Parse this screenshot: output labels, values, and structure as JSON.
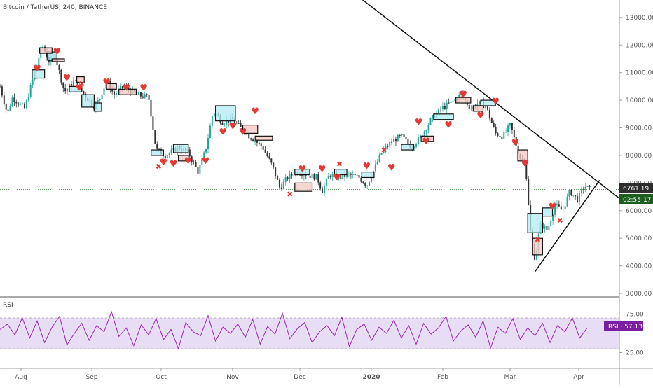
{
  "header": {
    "symbol_title": "Bitcoin / TetherUS, 240, BINANCE"
  },
  "rsi_panel": {
    "label": "RSI",
    "current_badge": "RSI · 57.13"
  },
  "price_badges": {
    "last_price": "6761.19",
    "countdown": "02:55:17"
  },
  "colors": {
    "candle_up": "#26a69a",
    "candle_down": "#333333",
    "box_up_fill": "#b2ebf2",
    "box_down_fill": "#f4c7c3",
    "heart": "#e53935",
    "cross": "#e53935",
    "rsi_line": "#9c27b0",
    "rsi_band": "#e1d5f2",
    "last_price_badge": "#2e2e2e",
    "countdown_badge": "#1b5e20",
    "rsi_badge": "#7b1fa2"
  },
  "chart_data": [
    {
      "type": "candlestick",
      "title": "Bitcoin / TetherUS, 240, BINANCE",
      "xlabel": "",
      "ylabel": "",
      "x_tick_labels": [
        "Aug",
        "Sep",
        "Oct",
        "Nov",
        "Dec",
        "2020",
        "Feb",
        "Mar",
        "Apr"
      ],
      "y_tick_labels": [
        "3000.00",
        "4000.00",
        "5000.00",
        "6000.00",
        "7000.00",
        "8000.00",
        "9000.00",
        "10000.00",
        "11000.00",
        "12000.00",
        "13000.00"
      ],
      "ylim": [
        2900,
        13300
      ],
      "grid": false,
      "close_path": [
        {
          "t": 0,
          "v": 10500
        },
        {
          "t": 0.3,
          "v": 9500
        },
        {
          "t": 0.5,
          "v": 10100
        },
        {
          "t": 1,
          "v": 9700
        },
        {
          "t": 1.4,
          "v": 11000
        },
        {
          "t": 1.7,
          "v": 12000
        },
        {
          "t": 2.0,
          "v": 11400
        },
        {
          "t": 2.2,
          "v": 11700
        },
        {
          "t": 2.6,
          "v": 10300
        },
        {
          "t": 3.0,
          "v": 10700
        },
        {
          "t": 3.4,
          "v": 10200
        },
        {
          "t": 3.8,
          "v": 9800
        },
        {
          "t": 4.0,
          "v": 10000
        },
        {
          "t": 4.3,
          "v": 10700
        },
        {
          "t": 4.6,
          "v": 10200
        },
        {
          "t": 5.0,
          "v": 10500
        },
        {
          "t": 5.5,
          "v": 10200
        },
        {
          "t": 6.0,
          "v": 10100
        },
        {
          "t": 6.3,
          "v": 8200
        },
        {
          "t": 6.7,
          "v": 8000
        },
        {
          "t": 7.2,
          "v": 8300
        },
        {
          "t": 7.6,
          "v": 8100
        },
        {
          "t": 8.0,
          "v": 7400
        },
        {
          "t": 8.3,
          "v": 8200
        },
        {
          "t": 8.6,
          "v": 9600
        },
        {
          "t": 9.0,
          "v": 9200
        },
        {
          "t": 9.4,
          "v": 9300
        },
        {
          "t": 9.8,
          "v": 8900
        },
        {
          "t": 10.2,
          "v": 8600
        },
        {
          "t": 10.6,
          "v": 8300
        },
        {
          "t": 11.0,
          "v": 7600
        },
        {
          "t": 11.3,
          "v": 6800
        },
        {
          "t": 11.6,
          "v": 7200
        },
        {
          "t": 12.0,
          "v": 7400
        },
        {
          "t": 12.4,
          "v": 7300
        },
        {
          "t": 12.8,
          "v": 7200
        },
        {
          "t": 13.0,
          "v": 6700
        },
        {
          "t": 13.3,
          "v": 7300
        },
        {
          "t": 13.7,
          "v": 7200
        },
        {
          "t": 14.1,
          "v": 7300
        },
        {
          "t": 14.5,
          "v": 7200
        },
        {
          "t": 14.8,
          "v": 6900
        },
        {
          "t": 15.1,
          "v": 7500
        },
        {
          "t": 15.4,
          "v": 8100
        },
        {
          "t": 15.8,
          "v": 8500
        },
        {
          "t": 16.2,
          "v": 8700
        },
        {
          "t": 16.6,
          "v": 8300
        },
        {
          "t": 17.0,
          "v": 8700
        },
        {
          "t": 17.4,
          "v": 9300
        },
        {
          "t": 17.8,
          "v": 9700
        },
        {
          "t": 18.2,
          "v": 9900
        },
        {
          "t": 18.6,
          "v": 10200
        },
        {
          "t": 19.0,
          "v": 9700
        },
        {
          "t": 19.3,
          "v": 9900
        },
        {
          "t": 19.6,
          "v": 9800
        },
        {
          "t": 20.0,
          "v": 8800
        },
        {
          "t": 20.3,
          "v": 8700
        },
        {
          "t": 20.6,
          "v": 9100
        },
        {
          "t": 21.0,
          "v": 7900
        },
        {
          "t": 21.2,
          "v": 7800
        },
        {
          "t": 21.4,
          "v": 5300
        },
        {
          "t": 21.6,
          "v": 4200
        },
        {
          "t": 21.8,
          "v": 5500
        },
        {
          "t": 22.1,
          "v": 5300
        },
        {
          "t": 22.4,
          "v": 6200
        },
        {
          "t": 22.7,
          "v": 6000
        },
        {
          "t": 23.0,
          "v": 6700
        },
        {
          "t": 23.3,
          "v": 6400
        },
        {
          "t": 23.6,
          "v": 6900
        },
        {
          "t": 23.8,
          "v": 6761
        }
      ],
      "annotations": {
        "hearts": [
          [
            1.5,
            11150
          ],
          [
            2.3,
            11750
          ],
          [
            2.7,
            10800
          ],
          [
            3.2,
            10450
          ],
          [
            4.3,
            10650
          ],
          [
            5.1,
            10450
          ],
          [
            5.8,
            10450
          ],
          [
            6.6,
            7750
          ],
          [
            7.0,
            7700
          ],
          [
            7.6,
            7800
          ],
          [
            8.3,
            7800
          ],
          [
            9.0,
            8850
          ],
          [
            9.4,
            9050
          ],
          [
            9.8,
            8850
          ],
          [
            10.3,
            9600
          ],
          [
            12.2,
            7500
          ],
          [
            13.0,
            7500
          ],
          [
            13.6,
            7200
          ],
          [
            14.8,
            7600
          ],
          [
            15.8,
            7550
          ],
          [
            16.9,
            9200
          ],
          [
            17.2,
            8500
          ],
          [
            18.1,
            9100
          ],
          [
            18.7,
            10200
          ],
          [
            19.4,
            9450
          ],
          [
            20.0,
            9950
          ],
          [
            20.8,
            8450
          ],
          [
            21.2,
            7700
          ],
          [
            22.3,
            6150
          ]
        ],
        "crosses": [
          [
            3.3,
            10600
          ],
          [
            6.4,
            7600
          ],
          [
            11.7,
            6600
          ],
          [
            13.7,
            7700
          ],
          [
            15.5,
            8200
          ],
          [
            21.7,
            4950
          ],
          [
            22.6,
            5650
          ]
        ],
        "boxes_up": [
          [
            1.3,
            1.8,
            10800,
            11100
          ],
          [
            1.9,
            2.3,
            11450,
            11750
          ],
          [
            2.8,
            3.3,
            10300,
            10500
          ],
          [
            3.3,
            3.8,
            9750,
            10200
          ],
          [
            3.8,
            4.1,
            9600,
            9900
          ],
          [
            6.1,
            6.6,
            8000,
            8200
          ],
          [
            7.0,
            7.6,
            8100,
            8400
          ],
          [
            8.7,
            9.5,
            9250,
            9800
          ],
          [
            11.9,
            12.5,
            7300,
            7500
          ],
          [
            13.5,
            14.0,
            7300,
            7500
          ],
          [
            14.6,
            15.1,
            7200,
            7400
          ],
          [
            16.2,
            16.7,
            8200,
            8400
          ],
          [
            17.5,
            18.3,
            9300,
            9500
          ],
          [
            19.4,
            20.0,
            9800,
            10000
          ],
          [
            21.3,
            21.9,
            5200,
            5900
          ],
          [
            21.9,
            22.3,
            5800,
            6100
          ]
        ],
        "boxes_down": [
          [
            1.6,
            2.1,
            11700,
            11900
          ],
          [
            2.1,
            2.6,
            11400,
            11500
          ],
          [
            3.1,
            3.4,
            10650,
            10850
          ],
          [
            4.3,
            4.7,
            10400,
            10600
          ],
          [
            4.8,
            5.5,
            10200,
            10400
          ],
          [
            7.2,
            7.6,
            7800,
            8000
          ],
          [
            9.8,
            10.4,
            8800,
            9100
          ],
          [
            10.3,
            11.0,
            8550,
            8700
          ],
          [
            11.9,
            12.6,
            6700,
            7000
          ],
          [
            17.0,
            17.5,
            8500,
            8700
          ],
          [
            18.4,
            19.0,
            9900,
            10100
          ],
          [
            19.1,
            19.5,
            9600,
            9800
          ],
          [
            20.9,
            21.3,
            7800,
            8200
          ],
          [
            21.5,
            21.9,
            4400,
            5000
          ]
        ],
        "resistance_line": {
          "from": [
            14.4,
            13800
          ],
          "to": [
            23.8,
            6800
          ]
        },
        "support_line": {
          "from": [
            21.6,
            3800
          ],
          "to": [
            24.2,
            7100
          ]
        },
        "last_price_line": 6761.19
      }
    },
    {
      "type": "line",
      "title": "RSI",
      "series": [
        {
          "name": "RSI",
          "values": [
            55,
            62,
            48,
            70,
            44,
            66,
            38,
            58,
            72,
            35,
            50,
            63,
            41,
            60,
            52,
            78,
            46,
            57,
            34,
            61,
            48,
            69,
            42,
            55,
            30,
            64,
            52,
            47,
            73,
            40,
            58,
            50,
            62,
            45,
            68,
            36,
            59,
            49,
            76,
            43,
            56,
            64,
            38,
            52,
            60,
            47,
            71,
            33,
            55,
            62,
            41,
            58,
            50,
            67,
            44,
            60,
            36,
            63,
            49,
            57,
            72,
            40,
            53,
            61,
            45,
            66,
            31,
            58,
            50,
            69,
            42,
            57,
            47,
            63,
            38,
            60,
            52,
            70,
            44,
            57
          ]
        }
      ],
      "y_tick_labels": [
        "25.00",
        "75.00"
      ],
      "ylim": [
        10,
        90
      ],
      "band": [
        30,
        70
      ],
      "last_value": 57.13
    }
  ]
}
